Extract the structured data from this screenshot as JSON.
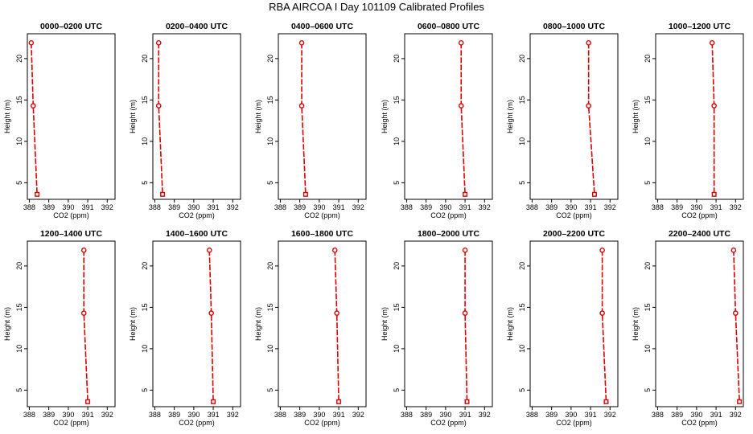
{
  "title": "RBA AIRCOA I  Day 101109  Calibrated Profiles",
  "colors": {
    "series": "#dd0000"
  },
  "chart_data": {
    "type": "line",
    "layout": "2x6 small multiples",
    "xlabel": "CO2 (ppm)",
    "ylabel": "Height (m)",
    "xlim": [
      387.9,
      392.4
    ],
    "ylim": [
      3,
      23
    ],
    "xticks": [
      388,
      389,
      390,
      391,
      392
    ],
    "yticks": [
      5,
      10,
      15,
      20
    ],
    "heights": [
      21.9,
      14.3,
      3.6
    ],
    "panels": [
      {
        "title": "0000–0200 UTC",
        "co2": [
          388.1,
          388.2,
          388.4
        ]
      },
      {
        "title": "0200–0400 UTC",
        "co2": [
          388.2,
          388.2,
          388.4
        ]
      },
      {
        "title": "0400–0600 UTC",
        "co2": [
          389.1,
          389.1,
          389.3
        ]
      },
      {
        "title": "0600–0800 UTC",
        "co2": [
          390.8,
          390.8,
          391.0
        ]
      },
      {
        "title": "0800–1000 UTC",
        "co2": [
          390.9,
          390.9,
          391.2
        ]
      },
      {
        "title": "1000–1200 UTC",
        "co2": [
          390.8,
          390.9,
          390.9
        ]
      },
      {
        "title": "1200–1400 UTC",
        "co2": [
          390.8,
          390.8,
          391.0
        ]
      },
      {
        "title": "1400–1600 UTC",
        "co2": [
          390.8,
          390.9,
          391.0
        ]
      },
      {
        "title": "1600–1800 UTC",
        "co2": [
          390.8,
          390.9,
          391.0
        ]
      },
      {
        "title": "1800–2000 UTC",
        "co2": [
          391.0,
          391.0,
          391.1
        ]
      },
      {
        "title": "2000–2200 UTC",
        "co2": [
          391.6,
          391.6,
          391.8
        ]
      },
      {
        "title": "2200–2400 UTC",
        "co2": [
          391.9,
          392.0,
          392.2
        ]
      }
    ]
  }
}
